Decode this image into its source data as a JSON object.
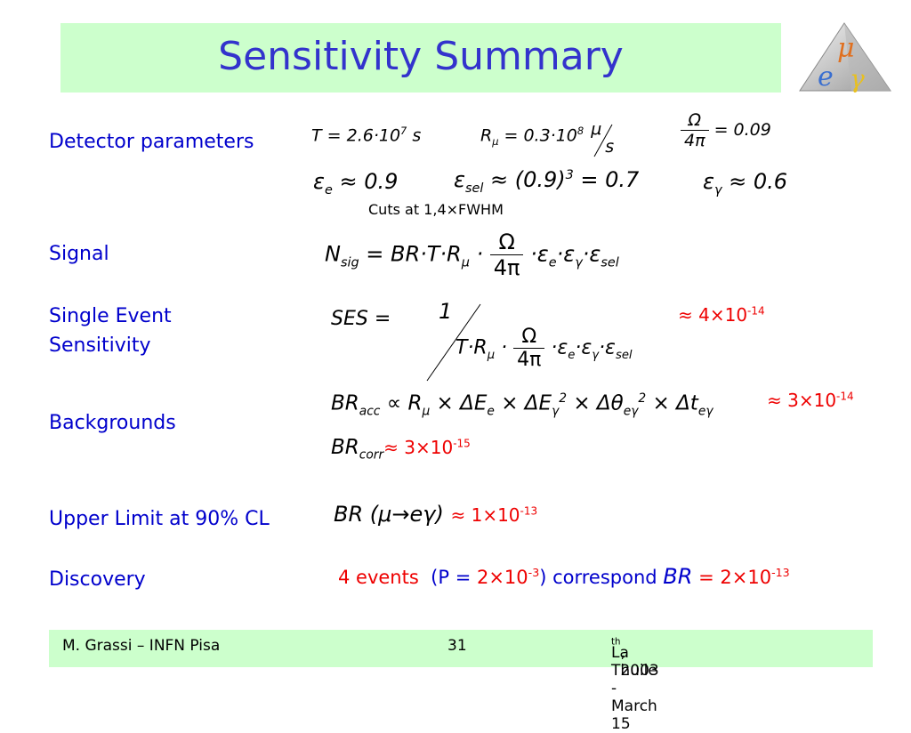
{
  "title": "Sensitivity Summary",
  "labels": {
    "detector": "Detector parameters",
    "signal": "Signal",
    "ses_line1": "Single Event",
    "ses_line2": "Sensitivity",
    "backgrounds": "Backgrounds",
    "upper_limit": "Upper Limit at 90% CL",
    "discovery": "Discovery"
  },
  "detector": {
    "T": "T = 2.6·10",
    "T_exp": "7",
    "T_unit": "s",
    "R": "R",
    "R_sub": "μ",
    "R_val": " = 0.3·10",
    "R_exp": "8",
    "R_unit_num": "μ",
    "R_unit_den": "s",
    "omega_num": "Ω",
    "omega_den": "4π",
    "omega_val": "= 0.09",
    "eps_e": "≈ 0.9",
    "eps_sel": "≈ (0.9)",
    "eps_sel_exp": "3",
    "eps_sel_val": " = 0.7",
    "eps_gamma": "≈ 0.6",
    "cuts_note": "Cuts at 1,4×FWHM"
  },
  "signal": {
    "lhs": "N",
    "lhs_sub": "sig",
    "rhs": "= BR·T·R",
    "rhs_sub": "μ",
    "frac_num": "Ω",
    "frac_den": "4π",
    "tail": "·ε",
    "tail_sub1": "e",
    "tail2": "·ε",
    "tail_sub2": "γ",
    "tail3": "·ε",
    "tail_sub3": "sel"
  },
  "ses": {
    "lhs": "SES =",
    "num": "1",
    "den": "T·R",
    "den_sub": "μ",
    "frac_num": "Ω",
    "frac_den": "4π",
    "result": "≈ 4×10",
    "result_exp": "-14"
  },
  "backgrounds": {
    "acc_lhs": "BR",
    "acc_sub": "acc",
    "acc_rhs": "∝ R",
    "acc_rhs_sub": "μ",
    "acc_rhs2": " × ΔE",
    "acc_rhs2_sub": "e",
    "acc_rhs3": " × ΔE",
    "acc_rhs3_sub": "γ",
    "acc_rhs3_exp": "2",
    "acc_rhs4": " × Δθ",
    "acc_rhs4_sub": "eγ",
    "acc_rhs4_exp": "2",
    "acc_rhs5": " × Δt",
    "acc_rhs5_sub": "eγ",
    "acc_result": "≈ 3×10",
    "acc_result_exp": "-14",
    "corr_lhs": "BR",
    "corr_sub": "corr",
    "corr_result": "≈ 3×10",
    "corr_result_exp": "-15"
  },
  "upper_limit": {
    "expr": "BR (μ→eγ)",
    "result": "≈ 1×10",
    "result_exp": "-13"
  },
  "discovery": {
    "part1": "4 events",
    "part2": "(P = ",
    "part3": "2×10",
    "part3_exp": "-3",
    "part4": ") correspond",
    "br": "BR",
    "part5": "= 2×10",
    "part5_exp": "-13"
  },
  "footer": {
    "left": "M. Grassi – INFN Pisa",
    "center": "31",
    "right_pre": "La Thuile -  March 15",
    "right_sup": "th",
    "right_post": " , 2003"
  }
}
